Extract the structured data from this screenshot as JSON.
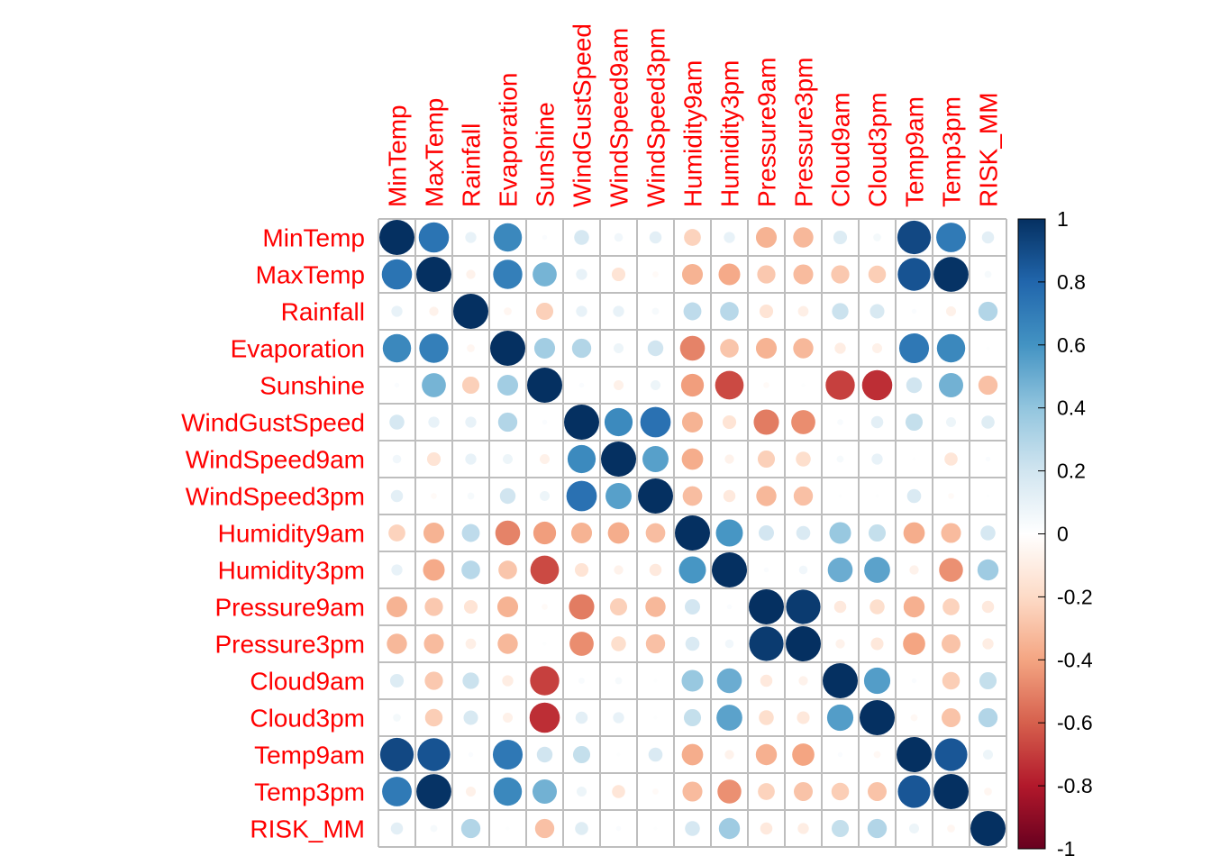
{
  "chart_data": {
    "type": "heatmap",
    "style": "circle correlation matrix",
    "labels": [
      "MinTemp",
      "MaxTemp",
      "Rainfall",
      "Evaporation",
      "Sunshine",
      "WindGustSpeed",
      "WindSpeed9am",
      "WindSpeed3pm",
      "Humidity9am",
      "Humidity3pm",
      "Pressure9am",
      "Pressure3pm",
      "Cloud9am",
      "Cloud3pm",
      "Temp9am",
      "Temp3pm",
      "RISK_MM"
    ],
    "label_color": "#FF0000",
    "grid_color": "#BEBEBE",
    "colorbar": {
      "range": [
        -1,
        1
      ],
      "ticks": [
        1,
        0.8,
        0.6,
        0.4,
        0.2,
        0,
        -0.2,
        -0.4,
        -0.6,
        -0.8,
        -1
      ],
      "tick_labels": [
        "1",
        "0.8",
        "0.6",
        "0.4",
        "0.2",
        "0",
        "-0.2",
        "-0.4",
        "-0.6",
        "-0.8",
        "-1"
      ],
      "colors": [
        "#67001F",
        "#B2182B",
        "#D6604D",
        "#F4A582",
        "#FDDBC7",
        "#FFFFFF",
        "#D1E5F0",
        "#92C5DE",
        "#4393C3",
        "#2166AC",
        "#053061"
      ]
    },
    "matrix": [
      [
        1.0,
        0.74,
        0.1,
        0.65,
        0.02,
        0.18,
        0.06,
        0.12,
        -0.23,
        0.1,
        -0.35,
        -0.33,
        0.15,
        0.05,
        0.91,
        0.71,
        0.12
      ],
      [
        0.74,
        1.0,
        -0.07,
        0.69,
        0.47,
        0.1,
        -0.15,
        -0.03,
        -0.35,
        -0.38,
        -0.27,
        -0.32,
        -0.27,
        -0.25,
        0.87,
        0.99,
        0.04
      ],
      [
        0.1,
        -0.07,
        1.0,
        -0.05,
        -0.24,
        0.1,
        0.1,
        0.04,
        0.26,
        0.28,
        -0.15,
        -0.09,
        0.22,
        0.17,
        0.02,
        -0.08,
        0.3
      ],
      [
        0.65,
        0.69,
        -0.05,
        1.0,
        0.35,
        0.3,
        0.08,
        0.2,
        -0.5,
        -0.28,
        -0.35,
        -0.33,
        -0.1,
        -0.08,
        0.72,
        0.65,
        0.01
      ],
      [
        0.02,
        0.47,
        -0.24,
        0.35,
        1.0,
        0.02,
        -0.08,
        0.08,
        -0.42,
        -0.66,
        -0.03,
        0.01,
        -0.69,
        -0.74,
        0.2,
        0.48,
        -0.3
      ],
      [
        0.18,
        0.1,
        0.1,
        0.3,
        0.02,
        1.0,
        0.64,
        0.75,
        -0.35,
        -0.15,
        -0.52,
        -0.47,
        0.03,
        0.12,
        0.24,
        0.08,
        0.14
      ],
      [
        0.06,
        -0.15,
        0.1,
        0.08,
        -0.08,
        0.64,
        1.0,
        0.55,
        -0.37,
        -0.07,
        -0.24,
        -0.18,
        0.04,
        0.1,
        0.01,
        -0.14,
        0.02
      ],
      [
        0.12,
        -0.03,
        0.04,
        0.2,
        0.08,
        0.75,
        0.55,
        1.0,
        -0.31,
        -0.12,
        -0.33,
        -0.3,
        0.01,
        0.01,
        0.16,
        -0.03,
        0.01
      ],
      [
        -0.23,
        -0.35,
        0.26,
        -0.5,
        -0.42,
        -0.35,
        -0.37,
        -0.31,
        1.0,
        0.59,
        0.19,
        0.16,
        0.38,
        0.24,
        -0.37,
        -0.32,
        0.18
      ],
      [
        0.1,
        -0.38,
        0.28,
        -0.28,
        -0.66,
        -0.15,
        -0.07,
        -0.12,
        0.59,
        1.0,
        0.02,
        0.06,
        0.5,
        0.54,
        -0.07,
        -0.46,
        0.36
      ],
      [
        -0.35,
        -0.27,
        -0.15,
        -0.35,
        -0.03,
        -0.52,
        -0.24,
        -0.33,
        0.19,
        0.02,
        1.0,
        0.96,
        -0.12,
        -0.18,
        -0.36,
        -0.23,
        -0.12
      ],
      [
        -0.33,
        -0.32,
        -0.09,
        -0.33,
        0.01,
        -0.47,
        -0.18,
        -0.3,
        0.16,
        0.06,
        0.96,
        1.0,
        -0.07,
        -0.13,
        -0.4,
        -0.29,
        -0.1
      ],
      [
        0.15,
        -0.27,
        0.22,
        -0.1,
        -0.69,
        0.03,
        0.04,
        0.01,
        0.38,
        0.5,
        -0.12,
        -0.07,
        1.0,
        0.56,
        0.02,
        -0.25,
        0.24
      ],
      [
        0.05,
        -0.25,
        0.17,
        -0.08,
        -0.74,
        0.12,
        0.1,
        0.01,
        0.24,
        0.54,
        -0.18,
        -0.13,
        0.56,
        1.0,
        -0.04,
        -0.29,
        0.3
      ],
      [
        0.91,
        0.87,
        0.02,
        0.72,
        0.2,
        0.24,
        0.01,
        0.16,
        -0.37,
        -0.07,
        -0.36,
        -0.4,
        0.02,
        -0.04,
        1.0,
        0.86,
        0.08
      ],
      [
        0.71,
        0.99,
        -0.08,
        0.65,
        0.48,
        0.08,
        -0.14,
        -0.03,
        -0.32,
        -0.46,
        -0.23,
        -0.29,
        -0.25,
        -0.29,
        0.86,
        1.0,
        -0.05
      ],
      [
        0.12,
        0.04,
        0.3,
        0.01,
        -0.3,
        0.14,
        0.02,
        0.01,
        0.18,
        0.36,
        -0.12,
        -0.1,
        0.24,
        0.3,
        0.08,
        -0.05,
        1.0
      ]
    ]
  }
}
